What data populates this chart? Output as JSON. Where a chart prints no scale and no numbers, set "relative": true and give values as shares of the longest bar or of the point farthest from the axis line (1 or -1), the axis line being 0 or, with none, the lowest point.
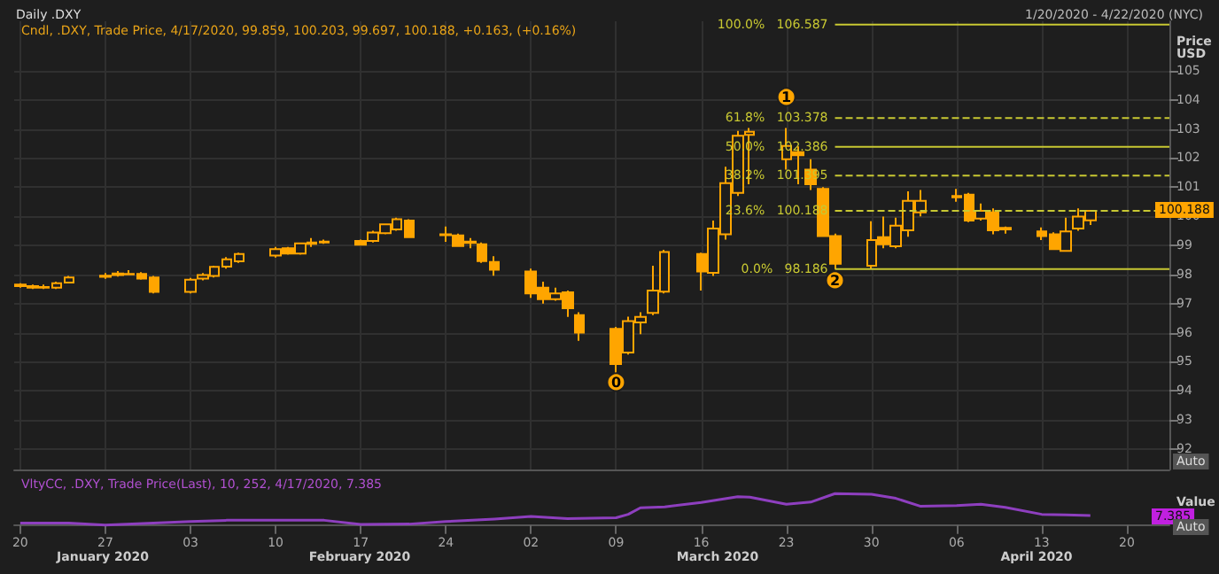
{
  "chart_data": [
    {
      "type": "candlestick",
      "title": "Daily .DXY",
      "subtitle": "1/20/2020 - 4/22/2020 (NYC)",
      "ylabel": "Price USD",
      "color": "#ffa500",
      "x": [
        "2020-01-20",
        "2020-01-21",
        "2020-01-22",
        "2020-01-23",
        "2020-01-24",
        "2020-01-27",
        "2020-01-28",
        "2020-01-29",
        "2020-01-30",
        "2020-01-31",
        "2020-02-03",
        "2020-02-04",
        "2020-02-05",
        "2020-02-06",
        "2020-02-07",
        "2020-02-10",
        "2020-02-11",
        "2020-02-12",
        "2020-02-13",
        "2020-02-14",
        "2020-02-17",
        "2020-02-18",
        "2020-02-19",
        "2020-02-20",
        "2020-02-21",
        "2020-02-24",
        "2020-02-25",
        "2020-02-26",
        "2020-02-27",
        "2020-02-28",
        "2020-03-02",
        "2020-03-03",
        "2020-03-04",
        "2020-03-05",
        "2020-03-06",
        "2020-03-09",
        "2020-03-10",
        "2020-03-11",
        "2020-03-12",
        "2020-03-13",
        "2020-03-16",
        "2020-03-17",
        "2020-03-18",
        "2020-03-19",
        "2020-03-20",
        "2020-03-23",
        "2020-03-24",
        "2020-03-25",
        "2020-03-26",
        "2020-03-27",
        "2020-03-30",
        "2020-03-31",
        "2020-04-01",
        "2020-04-02",
        "2020-04-03",
        "2020-04-06",
        "2020-04-07",
        "2020-04-08",
        "2020-04-09",
        "2020-04-10",
        "2020-04-13",
        "2020-04-14",
        "2020-04-15",
        "2020-04-16",
        "2020-04-17"
      ],
      "ohlc": [
        [
          97.6,
          97.7,
          97.55,
          97.65
        ],
        [
          97.6,
          97.65,
          97.5,
          97.55
        ],
        [
          97.55,
          97.65,
          97.5,
          97.57
        ],
        [
          97.55,
          97.75,
          97.5,
          97.7
        ],
        [
          97.72,
          97.95,
          97.7,
          97.9
        ],
        [
          97.92,
          98.05,
          97.85,
          97.96
        ],
        [
          97.98,
          98.12,
          97.93,
          98.03
        ],
        [
          98.02,
          98.15,
          97.97,
          98.0
        ],
        [
          98.02,
          98.08,
          97.82,
          97.86
        ],
        [
          97.9,
          97.95,
          97.35,
          97.4
        ],
        [
          97.4,
          97.88,
          97.35,
          97.82
        ],
        [
          97.86,
          98.05,
          97.8,
          97.98
        ],
        [
          97.95,
          98.3,
          97.9,
          98.26
        ],
        [
          98.27,
          98.6,
          98.2,
          98.52
        ],
        [
          98.45,
          98.75,
          98.4,
          98.7
        ],
        [
          98.65,
          98.95,
          98.58,
          98.87
        ],
        [
          98.9,
          98.95,
          98.68,
          98.72
        ],
        [
          98.72,
          99.1,
          98.68,
          99.07
        ],
        [
          99.05,
          99.25,
          98.95,
          99.1
        ],
        [
          99.1,
          99.2,
          99.05,
          99.13
        ],
        [
          99.15,
          99.2,
          99.0,
          99.02
        ],
        [
          99.15,
          99.5,
          99.1,
          99.44
        ],
        [
          99.42,
          99.75,
          99.38,
          99.72
        ],
        [
          99.55,
          99.95,
          99.5,
          99.9
        ],
        [
          99.85,
          99.9,
          99.25,
          99.28
        ],
        [
          99.35,
          99.65,
          99.12,
          99.38
        ],
        [
          99.34,
          99.4,
          98.95,
          98.98
        ],
        [
          99.13,
          99.25,
          98.9,
          99.08
        ],
        [
          99.04,
          99.1,
          98.4,
          98.46
        ],
        [
          98.43,
          98.63,
          97.96,
          98.16
        ],
        [
          98.1,
          98.2,
          97.2,
          97.35
        ],
        [
          97.55,
          97.75,
          97.0,
          97.15
        ],
        [
          97.15,
          97.55,
          97.1,
          97.35
        ],
        [
          97.39,
          97.45,
          96.54,
          96.84
        ],
        [
          96.6,
          96.7,
          95.72,
          96.0
        ],
        [
          96.13,
          96.2,
          94.6,
          94.92
        ],
        [
          95.32,
          96.55,
          95.25,
          96.4
        ],
        [
          96.35,
          96.7,
          95.95,
          96.54
        ],
        [
          96.68,
          98.3,
          96.6,
          97.45
        ],
        [
          97.41,
          98.85,
          97.35,
          98.77
        ],
        [
          98.7,
          98.75,
          97.45,
          98.1
        ],
        [
          98.06,
          99.85,
          97.95,
          99.58
        ],
        [
          99.38,
          101.7,
          99.2,
          101.14
        ],
        [
          100.8,
          102.93,
          100.7,
          102.77
        ],
        [
          102.8,
          103.03,
          101.1,
          102.9
        ],
        [
          101.96,
          103.03,
          101.6,
          102.42
        ],
        [
          102.2,
          102.4,
          101.1,
          102.1
        ],
        [
          101.6,
          101.96,
          100.9,
          101.1
        ],
        [
          100.94,
          101.0,
          99.3,
          99.32
        ],
        [
          99.32,
          99.4,
          98.186,
          98.37
        ],
        [
          98.3,
          99.83,
          98.2,
          99.18
        ],
        [
          99.28,
          99.99,
          98.9,
          99.04
        ],
        [
          98.97,
          99.95,
          98.9,
          99.68
        ],
        [
          99.52,
          100.86,
          99.3,
          100.53
        ],
        [
          100.13,
          100.9,
          100.0,
          100.53
        ],
        [
          100.65,
          100.94,
          100.5,
          100.7
        ],
        [
          100.74,
          100.8,
          99.8,
          99.85
        ],
        [
          99.92,
          100.44,
          99.85,
          100.19
        ],
        [
          100.13,
          100.27,
          99.38,
          99.52
        ],
        [
          99.6,
          99.65,
          99.4,
          99.55
        ],
        [
          99.48,
          99.62,
          99.18,
          99.32
        ],
        [
          99.38,
          99.45,
          98.85,
          98.87
        ],
        [
          98.81,
          99.95,
          98.8,
          99.48
        ],
        [
          99.58,
          100.27,
          99.5,
          99.99
        ],
        [
          99.859,
          100.203,
          99.697,
          100.188
        ]
      ],
      "xlim": [
        "2020-01-19T12:00",
        "2020-04-23T12:00"
      ],
      "xticks": [
        {
          "value": "2020-01-20",
          "label": "20"
        },
        {
          "value": "2020-01-27",
          "label": "27"
        },
        {
          "value": "2020-02-03",
          "label": "03"
        },
        {
          "value": "2020-02-10",
          "label": "10"
        },
        {
          "value": "2020-02-17",
          "label": "17"
        },
        {
          "value": "2020-02-24",
          "label": "24"
        },
        {
          "value": "2020-03-02",
          "label": "02"
        },
        {
          "value": "2020-03-09",
          "label": "09"
        },
        {
          "value": "2020-03-16",
          "label": "16"
        },
        {
          "value": "2020-03-23",
          "label": "23"
        },
        {
          "value": "2020-03-30",
          "label": "30"
        },
        {
          "value": "2020-04-06",
          "label": "06"
        },
        {
          "value": "2020-04-13",
          "label": "13"
        },
        {
          "value": "2020-04-20",
          "label": "20"
        }
      ],
      "ylim": [
        91.3,
        106.7
      ],
      "yticks": [
        92,
        93,
        94,
        95,
        96,
        97,
        98,
        99,
        100,
        101,
        102,
        103,
        104,
        105
      ],
      "tick_labels": "y",
      "grid": true,
      "ref_lines": [
        {
          "axis": "y",
          "value": 106.587,
          "label": "100.0%   106.587",
          "color": "#c8c832",
          "line_style": "solid"
        },
        {
          "axis": "y",
          "value": 103.378,
          "label": "61.8%   103.378",
          "color": "#c8c832",
          "line_style": "dashed"
        },
        {
          "axis": "y",
          "value": 102.386,
          "label": "50.0%   102.386",
          "color": "#c8c832",
          "line_style": "solid"
        },
        {
          "axis": "y",
          "value": 101.395,
          "label": "38.2%   101.395",
          "color": "#c8c832",
          "line_style": "dashed"
        },
        {
          "axis": "y",
          "value": 100.188,
          "label": "23.6%   100.188",
          "color": "#c8c832",
          "line_style": "dashed"
        },
        {
          "axis": "y",
          "value": 98.186,
          "label": "0.0%   98.186",
          "color": "#c8c832",
          "line_style": "solid"
        }
      ],
      "annotations": [
        "Cndl, .DXY, Trade Price, 4/17/2020, 99.859, 100.203, 99.697, 100.188, +0.163, (+0.16%)",
        "Auto",
        {
          "text": "0",
          "x": "2020-03-09",
          "y": 94.3
        },
        {
          "text": "1",
          "x": "2020-03-23",
          "y": 104.1
        },
        {
          "text": "2",
          "x": "2020-03-27",
          "y": 97.8
        },
        "100.188"
      ]
    },
    {
      "type": "line",
      "relative": true,
      "ylabel": "Value",
      "tick_labels": "x",
      "xlim": [
        "2020-01-19T12:00",
        "2020-04-23T12:00"
      ],
      "xticks": [
        {
          "value": "2020-01-20",
          "label": "20"
        },
        {
          "value": "2020-01-27",
          "label": "27"
        },
        {
          "value": "2020-02-03",
          "label": "03"
        },
        {
          "value": "2020-02-10",
          "label": "10"
        },
        {
          "value": "2020-02-17",
          "label": "17"
        },
        {
          "value": "2020-02-24",
          "label": "24"
        },
        {
          "value": "2020-03-02",
          "label": "02"
        },
        {
          "value": "2020-03-09",
          "label": "09"
        },
        {
          "value": "2020-03-16",
          "label": "16"
        },
        {
          "value": "2020-03-23",
          "label": "23"
        },
        {
          "value": "2020-03-30",
          "label": "30"
        },
        {
          "value": "2020-04-06",
          "label": "06"
        },
        {
          "value": "2020-04-13",
          "label": "13"
        },
        {
          "value": "2020-04-20",
          "label": "20"
        }
      ],
      "series": [
        {
          "color": "#8e3fbf",
          "x": [
            "2020-01-20",
            "2020-01-24",
            "2020-01-27",
            "2020-02-03",
            "2020-02-06",
            "2020-02-14",
            "2020-02-17",
            "2020-02-21",
            "2020-02-24",
            "2020-02-28",
            "2020-03-02",
            "2020-03-05",
            "2020-03-09",
            "2020-03-10",
            "2020-03-11",
            "2020-03-13",
            "2020-03-16",
            "2020-03-19",
            "2020-03-20",
            "2020-03-23",
            "2020-03-25",
            "2020-03-27",
            "2020-03-30",
            "2020-04-01",
            "2020-04-03",
            "2020-04-06",
            "2020-04-08",
            "2020-04-10",
            "2020-04-13",
            "2020-04-15",
            "2020-04-17"
          ],
          "values": [
            0.06,
            0.06,
            0,
            0.11,
            0.15,
            0.15,
            0.02,
            0.03,
            0.11,
            0.19,
            0.27,
            0.2,
            0.23,
            0.34,
            0.55,
            0.58,
            0.72,
            0.9,
            0.89,
            0.66,
            0.73,
            1,
            0.98,
            0.85,
            0.6,
            0.62,
            0.66,
            0.56,
            0.34,
            0.32,
            0.3
          ]
        }
      ],
      "annotations": [
        "VltyCC, .DXY, Trade Price(Last), 10, 252, 4/17/2020, 7.385",
        "7.385",
        "Auto",
        "January 2020",
        "February 2020",
        "March 2020",
        "April 2020"
      ]
    }
  ]
}
